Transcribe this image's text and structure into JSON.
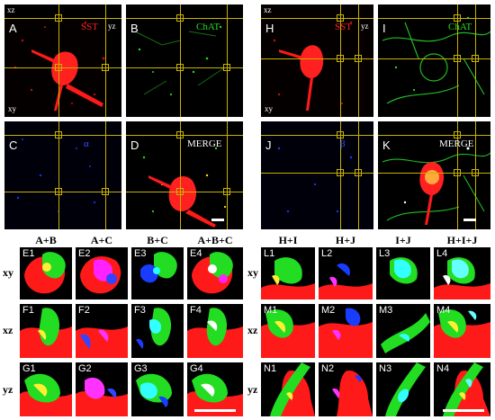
{
  "panels": {
    "A": {
      "label": "A",
      "channel": "SST",
      "plane_top": "xz",
      "plane_side": "yz",
      "plane_bottom": "xy"
    },
    "B": {
      "label": "B",
      "channel": "ChAT"
    },
    "C": {
      "label": "C",
      "channel": "α"
    },
    "D": {
      "label": "D",
      "channel": "MERGE"
    },
    "H": {
      "label": "H",
      "channel": "SST",
      "plane_top": "xz",
      "plane_side": "yz",
      "plane_bottom": "xy"
    },
    "I": {
      "label": "I",
      "channel": "ChAT"
    },
    "J": {
      "label": "J",
      "channel": "β"
    },
    "K": {
      "label": "K",
      "channel": "MERGE"
    }
  },
  "left_columns": [
    "A+B",
    "A+C",
    "B+C",
    "A+B+C"
  ],
  "right_columns": [
    "H+I",
    "H+J",
    "I+J",
    "H+I+J"
  ],
  "row_heads": [
    "xy",
    "xz",
    "yz"
  ],
  "left_tiles": [
    [
      "E1",
      "E2",
      "E3",
      "E4"
    ],
    [
      "F1",
      "F2",
      "F3",
      "F4"
    ],
    [
      "G1",
      "G2",
      "G3",
      "G4"
    ]
  ],
  "right_tiles": [
    [
      "L1",
      "L2",
      "L3",
      "L4"
    ],
    [
      "M1",
      "M2",
      "M3",
      "M4"
    ],
    [
      "N1",
      "N2",
      "N3",
      "N4"
    ]
  ],
  "colors": {
    "red": "#ff1a1a",
    "green": "#22dd22",
    "blue": "#1a3cff",
    "crosshair": "#c8b200",
    "label": "#ffffff"
  }
}
